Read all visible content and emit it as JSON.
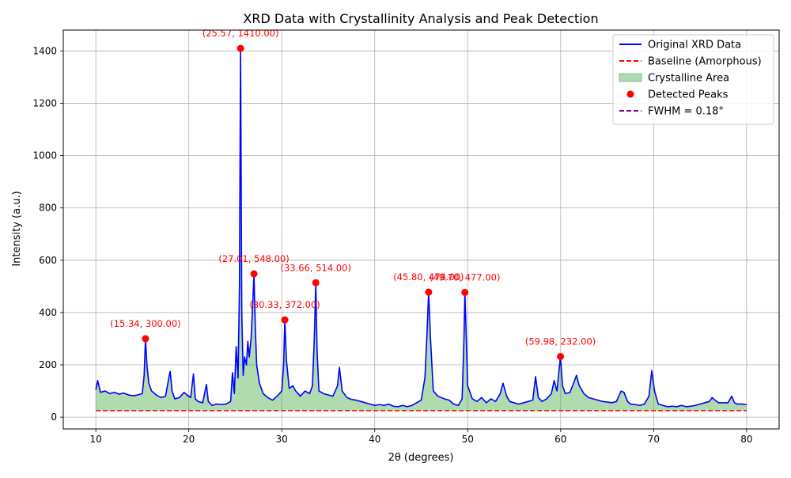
{
  "chart_data": {
    "type": "line",
    "title": "XRD Data with Crystallinity Analysis and Peak Detection",
    "xlabel": "2θ (degrees)",
    "ylabel": "Intensity (a.u.)",
    "xlim": [
      6.5,
      83.5
    ],
    "ylim": [
      -45,
      1480
    ],
    "xticks": [
      10,
      20,
      30,
      40,
      50,
      60,
      70,
      80
    ],
    "yticks": [
      0,
      200,
      400,
      600,
      800,
      1000,
      1200,
      1400
    ],
    "grid": true,
    "legend_position": "top-right",
    "baseline_value": 25,
    "colors": {
      "data": "#0000ff",
      "baseline": "#ff0000",
      "area": "#2ca02c",
      "peaks": "#ff0000",
      "fwhm": "#800080",
      "grid": "#b0b0b0"
    },
    "legend": [
      {
        "label": "Original XRD Data",
        "kind": "line"
      },
      {
        "label": "Baseline (Amorphous)",
        "kind": "dashed-red"
      },
      {
        "label": "Crystalline Area",
        "kind": "area"
      },
      {
        "label": "Detected Peaks",
        "kind": "dot"
      },
      {
        "label": "FWHM = 0.18°",
        "kind": "dashed-purple"
      }
    ],
    "series": [
      {
        "name": "Original XRD Data",
        "points": [
          [
            10.0,
            105
          ],
          [
            10.2,
            140
          ],
          [
            10.5,
            95
          ],
          [
            11.0,
            100
          ],
          [
            11.5,
            90
          ],
          [
            12.0,
            95
          ],
          [
            12.5,
            88
          ],
          [
            13.0,
            92
          ],
          [
            13.5,
            85
          ],
          [
            14.0,
            82
          ],
          [
            14.5,
            85
          ],
          [
            15.0,
            90
          ],
          [
            15.2,
            160
          ],
          [
            15.34,
            300
          ],
          [
            15.5,
            200
          ],
          [
            15.7,
            130
          ],
          [
            16.0,
            100
          ],
          [
            16.5,
            85
          ],
          [
            17.0,
            75
          ],
          [
            17.5,
            80
          ],
          [
            17.9,
            160
          ],
          [
            18.0,
            175
          ],
          [
            18.2,
            100
          ],
          [
            18.5,
            70
          ],
          [
            19.0,
            75
          ],
          [
            19.5,
            95
          ],
          [
            19.8,
            85
          ],
          [
            20.2,
            75
          ],
          [
            20.5,
            165
          ],
          [
            20.7,
            70
          ],
          [
            21.0,
            60
          ],
          [
            21.5,
            55
          ],
          [
            21.9,
            125
          ],
          [
            22.1,
            60
          ],
          [
            22.5,
            45
          ],
          [
            23.0,
            50
          ],
          [
            23.5,
            48
          ],
          [
            24.0,
            50
          ],
          [
            24.5,
            60
          ],
          [
            24.7,
            170
          ],
          [
            24.9,
            90
          ],
          [
            25.1,
            270
          ],
          [
            25.3,
            150
          ],
          [
            25.45,
            500
          ],
          [
            25.57,
            1410
          ],
          [
            25.7,
            400
          ],
          [
            25.85,
            160
          ],
          [
            26.0,
            230
          ],
          [
            26.2,
            200
          ],
          [
            26.35,
            290
          ],
          [
            26.5,
            230
          ],
          [
            26.7,
            300
          ],
          [
            26.9,
            450
          ],
          [
            27.01,
            548
          ],
          [
            27.15,
            350
          ],
          [
            27.3,
            200
          ],
          [
            27.6,
            130
          ],
          [
            28.0,
            90
          ],
          [
            28.5,
            75
          ],
          [
            29.0,
            65
          ],
          [
            29.5,
            80
          ],
          [
            30.0,
            100
          ],
          [
            30.2,
            200
          ],
          [
            30.33,
            372
          ],
          [
            30.5,
            220
          ],
          [
            30.8,
            110
          ],
          [
            31.2,
            120
          ],
          [
            31.5,
            100
          ],
          [
            32.0,
            80
          ],
          [
            32.5,
            100
          ],
          [
            33.0,
            90
          ],
          [
            33.3,
            120
          ],
          [
            33.5,
            300
          ],
          [
            33.66,
            514
          ],
          [
            33.8,
            250
          ],
          [
            34.0,
            100
          ],
          [
            34.5,
            90
          ],
          [
            35.0,
            85
          ],
          [
            35.5,
            80
          ],
          [
            36.0,
            120
          ],
          [
            36.2,
            190
          ],
          [
            36.5,
            100
          ],
          [
            37.0,
            75
          ],
          [
            37.5,
            68
          ],
          [
            38.0,
            65
          ],
          [
            38.5,
            60
          ],
          [
            39.0,
            55
          ],
          [
            39.5,
            50
          ],
          [
            40.0,
            45
          ],
          [
            40.5,
            48
          ],
          [
            41.0,
            45
          ],
          [
            41.5,
            50
          ],
          [
            42.0,
            42
          ],
          [
            42.5,
            40
          ],
          [
            43.0,
            45
          ],
          [
            43.5,
            40
          ],
          [
            44.0,
            45
          ],
          [
            44.5,
            55
          ],
          [
            45.0,
            65
          ],
          [
            45.4,
            150
          ],
          [
            45.6,
            300
          ],
          [
            45.8,
            478
          ],
          [
            46.0,
            300
          ],
          [
            46.3,
            100
          ],
          [
            46.8,
            80
          ],
          [
            47.5,
            70
          ],
          [
            48.0,
            65
          ],
          [
            48.5,
            50
          ],
          [
            49.0,
            45
          ],
          [
            49.4,
            70
          ],
          [
            49.6,
            300
          ],
          [
            49.7,
            477
          ],
          [
            49.85,
            300
          ],
          [
            50.0,
            120
          ],
          [
            50.5,
            70
          ],
          [
            51.0,
            60
          ],
          [
            51.5,
            75
          ],
          [
            52.0,
            55
          ],
          [
            52.5,
            70
          ],
          [
            53.0,
            60
          ],
          [
            53.5,
            90
          ],
          [
            53.8,
            130
          ],
          [
            54.2,
            80
          ],
          [
            54.5,
            60
          ],
          [
            55.0,
            55
          ],
          [
            55.5,
            50
          ],
          [
            56.0,
            55
          ],
          [
            56.5,
            60
          ],
          [
            57.0,
            65
          ],
          [
            57.3,
            155
          ],
          [
            57.6,
            75
          ],
          [
            58.0,
            60
          ],
          [
            58.5,
            70
          ],
          [
            59.0,
            90
          ],
          [
            59.3,
            140
          ],
          [
            59.6,
            100
          ],
          [
            59.98,
            232
          ],
          [
            60.2,
            120
          ],
          [
            60.5,
            90
          ],
          [
            61.0,
            95
          ],
          [
            61.5,
            140
          ],
          [
            61.7,
            160
          ],
          [
            62.0,
            120
          ],
          [
            62.5,
            90
          ],
          [
            63.0,
            75
          ],
          [
            63.5,
            70
          ],
          [
            64.0,
            65
          ],
          [
            64.5,
            60
          ],
          [
            65.0,
            58
          ],
          [
            65.5,
            55
          ],
          [
            66.0,
            60
          ],
          [
            66.5,
            100
          ],
          [
            66.8,
            95
          ],
          [
            67.2,
            60
          ],
          [
            67.5,
            50
          ],
          [
            68.0,
            48
          ],
          [
            68.5,
            45
          ],
          [
            69.0,
            50
          ],
          [
            69.5,
            80
          ],
          [
            69.8,
            178
          ],
          [
            70.1,
            100
          ],
          [
            70.5,
            50
          ],
          [
            71.0,
            45
          ],
          [
            71.5,
            40
          ],
          [
            72.0,
            42
          ],
          [
            72.5,
            40
          ],
          [
            73.0,
            45
          ],
          [
            73.5,
            40
          ],
          [
            74.0,
            42
          ],
          [
            74.5,
            45
          ],
          [
            75.0,
            50
          ],
          [
            75.5,
            55
          ],
          [
            76.0,
            60
          ],
          [
            76.3,
            75
          ],
          [
            76.6,
            65
          ],
          [
            77.0,
            55
          ],
          [
            77.5,
            55
          ],
          [
            78.0,
            55
          ],
          [
            78.4,
            80
          ],
          [
            78.7,
            55
          ],
          [
            79.0,
            50
          ],
          [
            79.5,
            50
          ],
          [
            80.0,
            48
          ]
        ]
      }
    ],
    "peaks": [
      {
        "x": 15.34,
        "y": 300,
        "label": "(15.34, 300.00)"
      },
      {
        "x": 25.57,
        "y": 1410,
        "label": "(25.57, 1410.00)"
      },
      {
        "x": 27.01,
        "y": 548,
        "label": "(27.01, 548.00)"
      },
      {
        "x": 30.33,
        "y": 372,
        "label": "(30.33, 372.00)"
      },
      {
        "x": 33.66,
        "y": 514,
        "label": "(33.66, 514.00)"
      },
      {
        "x": 45.8,
        "y": 478,
        "label": "(45.80, 478.00)"
      },
      {
        "x": 49.7,
        "y": 477,
        "label": "(49.70, 477.00)"
      },
      {
        "x": 59.98,
        "y": 232,
        "label": "(59.98, 232.00)"
      }
    ]
  }
}
